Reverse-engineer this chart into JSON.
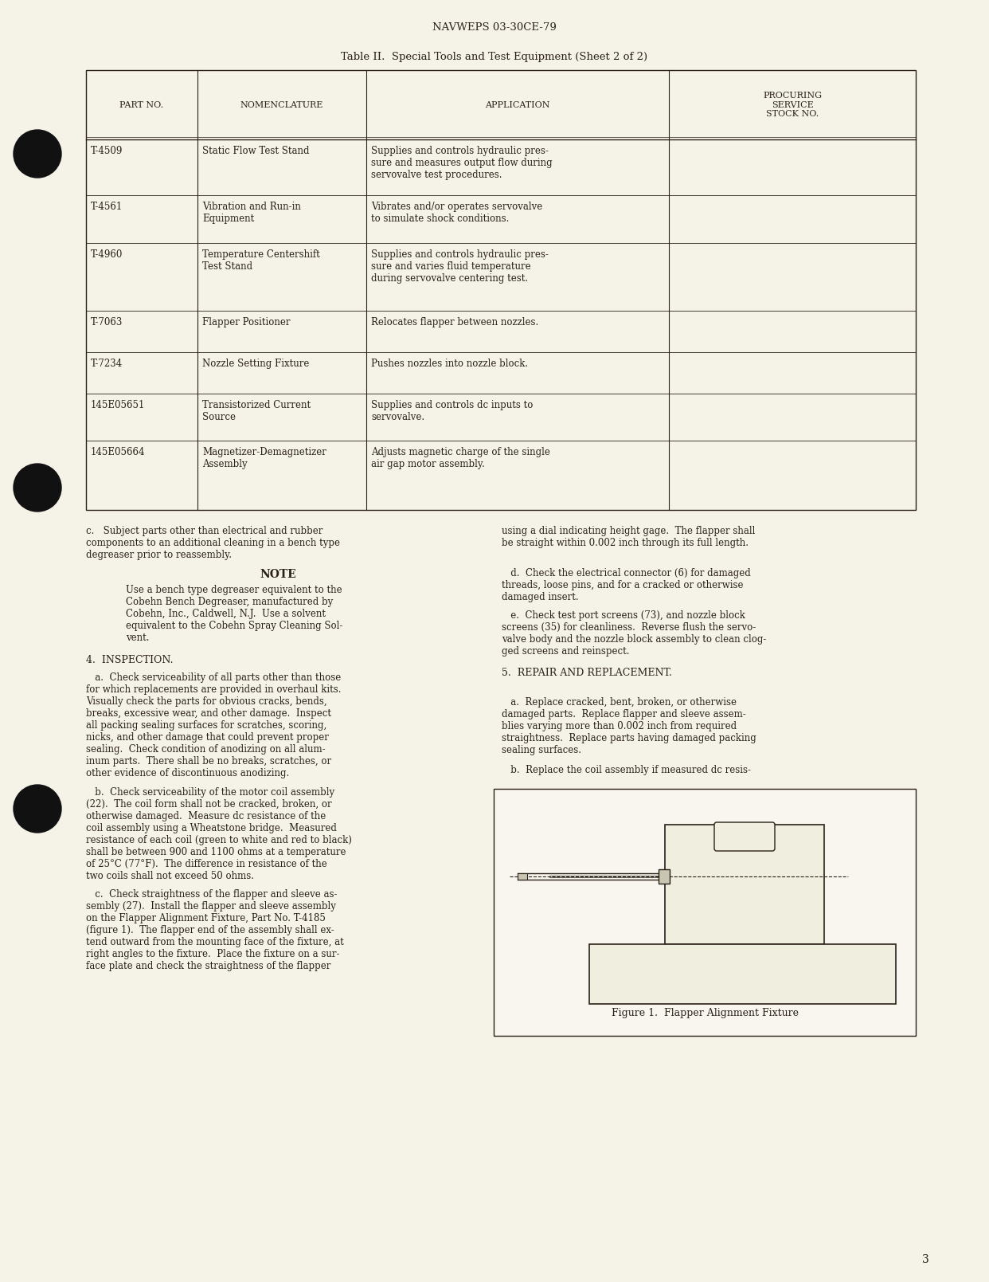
{
  "page_bg": "#f5f3e8",
  "text_color": "#2a2018",
  "header_text": "NAVWEPS 03-30CE-79",
  "table_title": "Table II.  Special Tools and Test Equipment (Sheet 2 of 2)",
  "table_headers": [
    "PART NO.",
    "NOMENCLATURE",
    "APPLICATION",
    "PROCURING\nSERVICE\nSTOCK NO."
  ],
  "table_rows": [
    [
      "T-4509",
      "Static Flow Test Stand",
      "Supplies and controls hydraulic pres-\nsure and measures output flow during\nservovalve test procedures.",
      ""
    ],
    [
      "T-4561",
      "Vibration and Run-in\nEquipment",
      "Vibrates and/or operates servovalve\nto simulate shock conditions.",
      ""
    ],
    [
      "T-4960",
      "Temperature Centershift\nTest Stand",
      "Supplies and controls hydraulic pres-\nsure and varies fluid temperature\nduring servovalve centering test.",
      ""
    ],
    [
      "T-7063",
      "Flapper Positioner",
      "Relocates flapper between nozzles.",
      ""
    ],
    [
      "T-7234",
      "Nozzle Setting Fixture",
      "Pushes nozzles into nozzle block.",
      ""
    ],
    [
      "145E05651",
      "Transistorized Current\nSource",
      "Supplies and controls dc inputs to\nservovalve.",
      ""
    ],
    [
      "145E05664",
      "Magnetizer-Demagnetizer\nAssembly",
      "Adjusts magnetic charge of the single\nair gap motor assembly.",
      ""
    ]
  ],
  "page_number": "3"
}
